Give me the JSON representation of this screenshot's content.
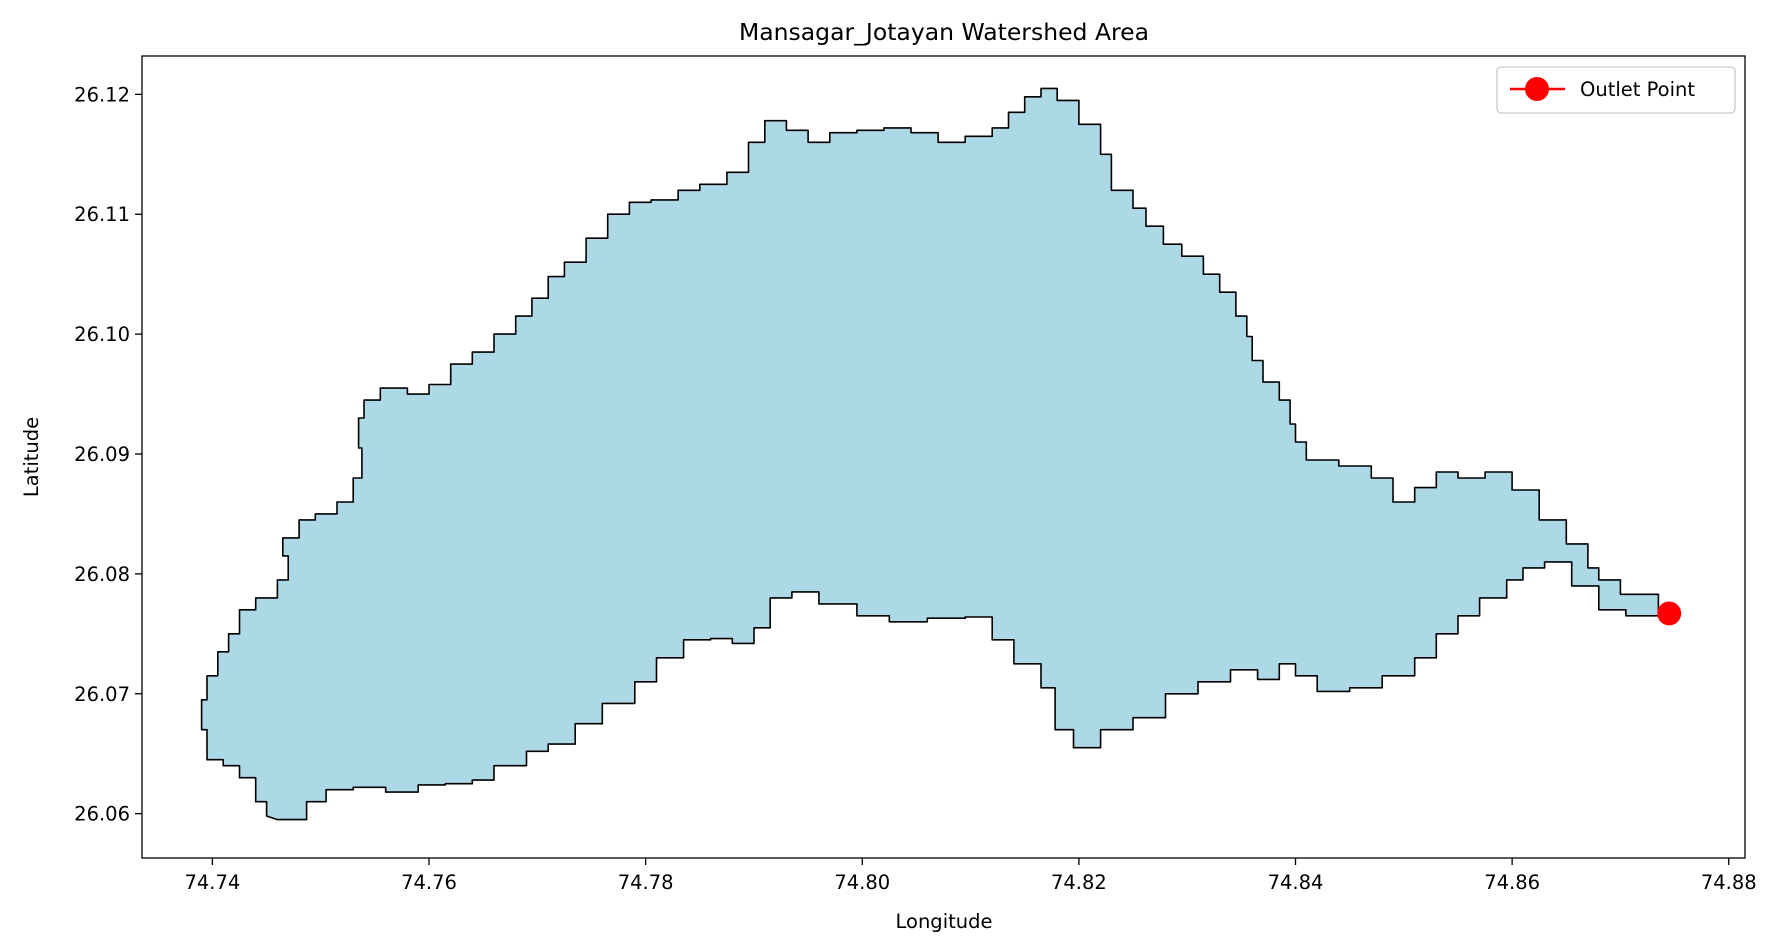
{
  "chart_data": {
    "type": "map",
    "title": "Mansagar_Jotayan Watershed Area",
    "xlabel": "Longitude",
    "ylabel": "Latitude",
    "xlim": [
      74.7335,
      74.8815
    ],
    "ylim": [
      26.0563,
      26.1232
    ],
    "xticks": [
      74.74,
      74.76,
      74.78,
      74.8,
      74.82,
      74.84,
      74.86,
      74.88
    ],
    "xtick_labels": [
      "74.74",
      "74.76",
      "74.78",
      "74.80",
      "74.82",
      "74.84",
      "74.86",
      "74.88"
    ],
    "yticks": [
      26.06,
      26.07,
      26.08,
      26.09,
      26.1,
      26.11,
      26.12
    ],
    "ytick_labels": [
      "26.06",
      "26.07",
      "26.08",
      "26.09",
      "26.10",
      "26.11",
      "26.12"
    ],
    "grid": false,
    "legend_position": "top-right",
    "watershed": {
      "fill_color": "#add8e6",
      "edge_color": "#000000",
      "boundary": [
        [
          74.746,
          26.0595
        ],
        [
          74.7487,
          26.061
        ],
        [
          74.7505,
          26.062
        ],
        [
          74.753,
          26.0622
        ],
        [
          74.756,
          26.0618
        ],
        [
          74.759,
          26.0624
        ],
        [
          74.7615,
          26.0625
        ],
        [
          74.764,
          26.0628
        ],
        [
          74.766,
          26.064
        ],
        [
          74.769,
          26.0652
        ],
        [
          74.771,
          26.0658
        ],
        [
          74.7735,
          26.0675
        ],
        [
          74.776,
          26.0692
        ],
        [
          74.779,
          26.071
        ],
        [
          74.781,
          26.073
        ],
        [
          74.7835,
          26.0745
        ],
        [
          74.786,
          26.0746
        ],
        [
          74.788,
          26.0742
        ],
        [
          74.79,
          26.0755
        ],
        [
          74.7915,
          26.078
        ],
        [
          74.7935,
          26.0785
        ],
        [
          74.796,
          26.0775
        ],
        [
          74.7995,
          26.0765
        ],
        [
          74.8025,
          26.076
        ],
        [
          74.806,
          26.0763
        ],
        [
          74.8095,
          26.0764
        ],
        [
          74.812,
          26.0745
        ],
        [
          74.814,
          26.0725
        ],
        [
          74.8165,
          26.0705
        ],
        [
          74.8178,
          26.067
        ],
        [
          74.8195,
          26.0655
        ],
        [
          74.822,
          26.067
        ],
        [
          74.825,
          26.068
        ],
        [
          74.828,
          26.07
        ],
        [
          74.831,
          26.071
        ],
        [
          74.834,
          26.072
        ],
        [
          74.8365,
          26.0712
        ],
        [
          74.8385,
          26.0725
        ],
        [
          74.84,
          26.0715
        ],
        [
          74.842,
          26.0702
        ],
        [
          74.845,
          26.0705
        ],
        [
          74.848,
          26.0715
        ],
        [
          74.851,
          26.073
        ],
        [
          74.853,
          26.075
        ],
        [
          74.855,
          26.0765
        ],
        [
          74.857,
          26.078
        ],
        [
          74.8595,
          26.0795
        ],
        [
          74.861,
          26.0805
        ],
        [
          74.863,
          26.081
        ],
        [
          74.8655,
          26.079
        ],
        [
          74.868,
          26.077
        ],
        [
          74.8705,
          26.0765
        ],
        [
          74.8742,
          26.0765
        ],
        [
          74.8735,
          26.0783
        ],
        [
          74.87,
          26.0795
        ],
        [
          74.868,
          26.0805
        ],
        [
          74.867,
          26.0825
        ],
        [
          74.865,
          26.0845
        ],
        [
          74.8625,
          26.087
        ],
        [
          74.86,
          26.0885
        ],
        [
          74.8575,
          26.088
        ],
        [
          74.855,
          26.0885
        ],
        [
          74.853,
          26.0872
        ],
        [
          74.851,
          26.086
        ],
        [
          74.849,
          26.088
        ],
        [
          74.847,
          26.089
        ],
        [
          74.844,
          26.0895
        ],
        [
          74.841,
          26.091
        ],
        [
          74.84,
          26.0925
        ],
        [
          74.8395,
          26.0945
        ],
        [
          74.8385,
          26.096
        ],
        [
          74.837,
          26.0978
        ],
        [
          74.836,
          26.0998
        ],
        [
          74.8355,
          26.1015
        ],
        [
          74.8345,
          26.1035
        ],
        [
          74.833,
          26.105
        ],
        [
          74.8315,
          26.1065
        ],
        [
          74.8295,
          26.1075
        ],
        [
          74.8278,
          26.109
        ],
        [
          74.8262,
          26.1105
        ],
        [
          74.825,
          26.112
        ],
        [
          74.823,
          26.115
        ],
        [
          74.822,
          26.1175
        ],
        [
          74.82,
          26.1195
        ],
        [
          74.818,
          26.1205
        ],
        [
          74.8165,
          26.1198
        ],
        [
          74.815,
          26.1185
        ],
        [
          74.8135,
          26.1172
        ],
        [
          74.812,
          26.1165
        ],
        [
          74.8095,
          26.116
        ],
        [
          74.807,
          26.1168
        ],
        [
          74.8045,
          26.1172
        ],
        [
          74.802,
          26.117
        ],
        [
          74.7995,
          26.1168
        ],
        [
          74.797,
          26.116
        ],
        [
          74.795,
          26.117
        ],
        [
          74.793,
          26.1178
        ],
        [
          74.791,
          26.116
        ],
        [
          74.7895,
          26.1135
        ],
        [
          74.7875,
          26.1125
        ],
        [
          74.785,
          26.112
        ],
        [
          74.783,
          26.1112
        ],
        [
          74.7805,
          26.111
        ],
        [
          74.7785,
          26.11
        ],
        [
          74.7765,
          26.108
        ],
        [
          74.7745,
          26.106
        ],
        [
          74.7725,
          26.1048
        ],
        [
          74.771,
          26.103
        ],
        [
          74.7695,
          26.1015
        ],
        [
          74.768,
          26.1
        ],
        [
          74.766,
          26.0985
        ],
        [
          74.764,
          26.0975
        ],
        [
          74.762,
          26.0958
        ],
        [
          74.76,
          26.095
        ],
        [
          74.758,
          26.0955
        ],
        [
          74.7555,
          26.0945
        ],
        [
          74.754,
          26.093
        ],
        [
          74.7535,
          26.0905
        ],
        [
          74.7538,
          26.088
        ],
        [
          74.753,
          26.086
        ],
        [
          74.7515,
          26.085
        ],
        [
          74.7495,
          26.0845
        ],
        [
          74.748,
          26.083
        ],
        [
          74.7465,
          26.0815
        ],
        [
          74.747,
          26.0795
        ],
        [
          74.746,
          26.078
        ],
        [
          74.744,
          26.077
        ],
        [
          74.7425,
          26.075
        ],
        [
          74.7415,
          26.0735
        ],
        [
          74.7405,
          26.0715
        ],
        [
          74.7395,
          26.0695
        ],
        [
          74.739,
          26.067
        ],
        [
          74.7395,
          26.0645
        ],
        [
          74.741,
          26.064
        ],
        [
          74.7425,
          26.063
        ],
        [
          74.744,
          26.061
        ],
        [
          74.745,
          26.0598
        ]
      ]
    },
    "outlet_point": {
      "label": "Outlet Point",
      "x": 74.8745,
      "y": 26.0767,
      "color": "#ff0000"
    }
  }
}
